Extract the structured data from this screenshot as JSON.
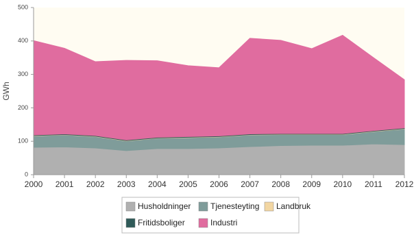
{
  "chart_data": {
    "type": "stacked-area",
    "y_label": "GWh",
    "categories": [
      "2000",
      "2001",
      "2002",
      "2003",
      "2004",
      "2005",
      "2006",
      "2007",
      "2008",
      "2009",
      "2010",
      "2011",
      "2012"
    ],
    "series": [
      {
        "name": "Husholdninger",
        "color": "#b0b0b0",
        "values": [
          82,
          83,
          80,
          72,
          78,
          78,
          80,
          84,
          87,
          88,
          88,
          92,
          90
        ]
      },
      {
        "name": "Tjenesteyting",
        "color": "#7f9c9a",
        "values": [
          34,
          36,
          34,
          29,
          31,
          33,
          33,
          35,
          33,
          32,
          32,
          37,
          47
        ]
      },
      {
        "name": "Landbruk",
        "color": "#f2d6a2",
        "values": [
          1,
          1,
          1,
          1,
          1,
          1,
          1,
          1,
          1,
          1,
          1,
          1,
          1
        ]
      },
      {
        "name": "Fritidsboliger",
        "color": "#2f5a58",
        "values": [
          2,
          2,
          2,
          2,
          2,
          2,
          2,
          2,
          2,
          2,
          2,
          2,
          2
        ]
      },
      {
        "name": "Industri",
        "color": "#e06c9f",
        "values": [
          282,
          256,
          221,
          238,
          229,
          212,
          204,
          286,
          279,
          254,
          294,
          218,
          144
        ]
      }
    ],
    "ylim": [
      0,
      500
    ],
    "yticks": [
      0,
      100,
      200,
      300,
      400,
      500
    ],
    "plot_background": "#fffcf2"
  }
}
